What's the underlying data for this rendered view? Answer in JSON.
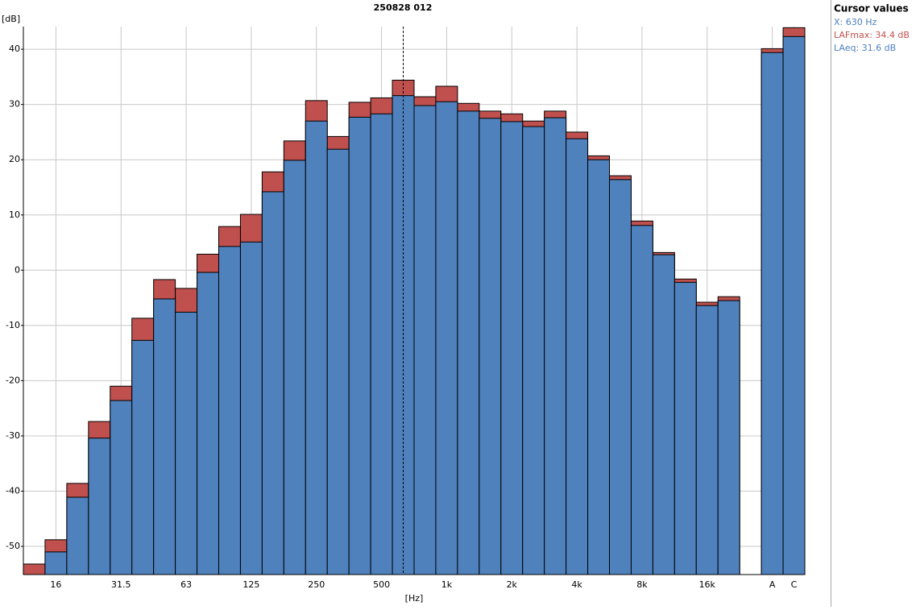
{
  "chart_data": {
    "type": "bar",
    "title": "250828 012",
    "y_label": "[dB]",
    "x_label": "[Hz]",
    "categories": [
      null,
      "16",
      null,
      null,
      "31.5",
      null,
      null,
      "63",
      null,
      null,
      "125",
      null,
      null,
      "250",
      null,
      null,
      "500",
      null,
      null,
      "1k",
      null,
      null,
      "2k",
      null,
      null,
      "4k",
      null,
      null,
      "8k",
      null,
      null,
      "16k",
      null,
      null,
      "A",
      "C"
    ],
    "series": [
      {
        "name": "LAFmax",
        "color": "#c0504d",
        "values": [
          -53.2,
          -48.8,
          -38.6,
          -27.4,
          -21.0,
          -8.7,
          -1.7,
          -3.3,
          2.9,
          7.9,
          10.1,
          17.8,
          23.4,
          30.7,
          24.2,
          30.4,
          31.2,
          34.4,
          31.4,
          33.3,
          30.2,
          28.8,
          28.3,
          27.0,
          28.8,
          25.0,
          20.7,
          17.1,
          8.9,
          3.2,
          -1.6,
          -5.8,
          -4.8,
          null,
          40.1,
          43.9
        ]
      },
      {
        "name": "LAeq",
        "color": "#4f81bd",
        "values": [
          null,
          -51.0,
          -41.1,
          -30.4,
          -23.6,
          -12.7,
          -5.2,
          -7.6,
          -0.4,
          4.3,
          5.1,
          14.2,
          19.9,
          27.0,
          21.9,
          27.7,
          28.3,
          31.6,
          29.8,
          30.5,
          28.8,
          27.5,
          26.9,
          26.0,
          27.6,
          23.8,
          20.0,
          16.4,
          8.1,
          2.8,
          -2.2,
          -6.4,
          -5.5,
          null,
          39.4,
          42.3
        ]
      }
    ],
    "ylim": [
      -55.1,
      44.1
    ],
    "yticks": [
      -50,
      -40,
      -30,
      -20,
      -10,
      0,
      10,
      20,
      30,
      40
    ],
    "grid": true,
    "cursor": {
      "title": "Cursor values",
      "x_text": "X: 630 Hz",
      "lines": [
        "LAFmax: 34.4 dB",
        "LAeq: 31.6 dB"
      ]
    }
  }
}
